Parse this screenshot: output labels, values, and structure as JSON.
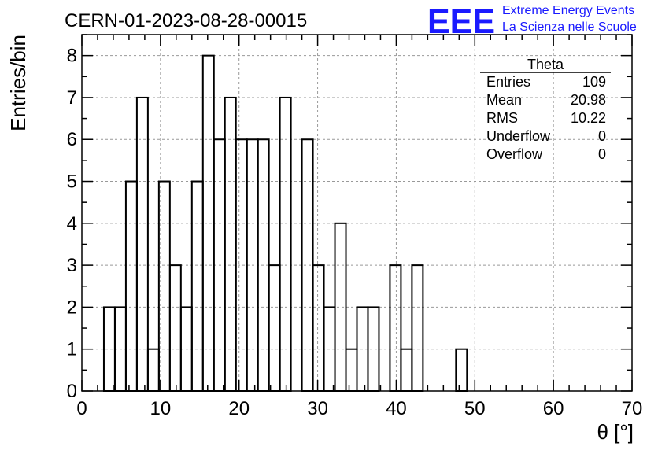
{
  "header": {
    "run_title": "CERN-01-2023-08-28-00015",
    "logo_text": "EEE",
    "logo_line1": "Extreme Energy Events",
    "logo_line2": "La Scienza nelle Scuole",
    "logo_color": "#1a1aff"
  },
  "stats_box": {
    "title": "Theta",
    "rows": [
      {
        "label": "Entries",
        "value": "109"
      },
      {
        "label": "Mean",
        "value": "20.98"
      },
      {
        "label": "RMS",
        "value": "10.22"
      },
      {
        "label": "Underflow",
        "value": "0"
      },
      {
        "label": "Overflow",
        "value": "0"
      }
    ]
  },
  "chart_data": {
    "type": "bar",
    "title": "CERN-01-2023-08-28-00015",
    "xlabel": "θ [°]",
    "ylabel": "Entries/bin",
    "xlim": [
      0,
      70
    ],
    "ylim": [
      0,
      8.5
    ],
    "x_ticks": [
      0,
      10,
      20,
      30,
      40,
      50,
      60,
      70
    ],
    "y_ticks": [
      0,
      1,
      2,
      3,
      4,
      5,
      6,
      7,
      8
    ],
    "grid": true,
    "bin_width": 1.4,
    "bin_edges_start": 0,
    "values": [
      0,
      0,
      2,
      2,
      5,
      7,
      1,
      5,
      3,
      2,
      5,
      8,
      6,
      7,
      6,
      6,
      6,
      3,
      7,
      0,
      6,
      3,
      2,
      4,
      1,
      2,
      2,
      0,
      3,
      1,
      3,
      0,
      0,
      0,
      1,
      0,
      0,
      0,
      0,
      0,
      0,
      0,
      0,
      0,
      0,
      0,
      0,
      0,
      0,
      0
    ],
    "line_color": "#000000",
    "grid_color": "#999999"
  }
}
